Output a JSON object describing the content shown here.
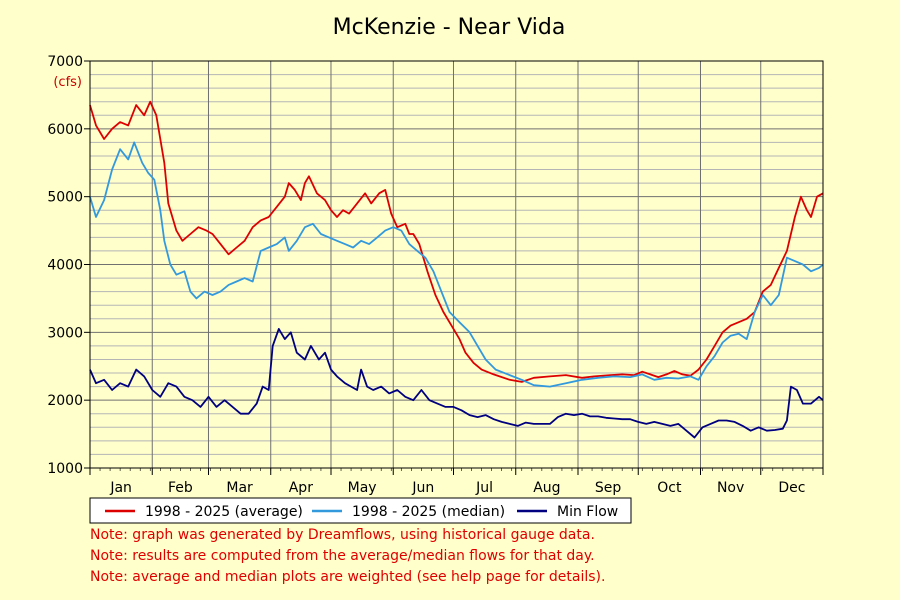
{
  "chart_data": {
    "type": "line",
    "title": "McKenzie - Near Vida",
    "ylabel": "(cfs)",
    "xlabel": "",
    "ylim": [
      1000,
      7000
    ],
    "yticks": [
      1000,
      2000,
      3000,
      4000,
      5000,
      6000,
      7000
    ],
    "month_labels": [
      "Jan",
      "Feb",
      "Mar",
      "Apr",
      "May",
      "Jun",
      "Jul",
      "Aug",
      "Sep",
      "Oct",
      "Nov",
      "Dec"
    ],
    "x_unit": "day_of_year",
    "xlim": [
      1,
      366
    ],
    "grid": true,
    "legend_position": "bottom",
    "series": [
      {
        "name": "1998 - 2025 (average)",
        "color": "#dd0000",
        "points": [
          [
            1,
            6350
          ],
          [
            4,
            6050
          ],
          [
            8,
            5850
          ],
          [
            12,
            6000
          ],
          [
            16,
            6100
          ],
          [
            20,
            6050
          ],
          [
            24,
            6350
          ],
          [
            28,
            6200
          ],
          [
            31,
            6400
          ],
          [
            34,
            6200
          ],
          [
            38,
            5500
          ],
          [
            40,
            4900
          ],
          [
            44,
            4500
          ],
          [
            47,
            4350
          ],
          [
            51,
            4450
          ],
          [
            55,
            4550
          ],
          [
            59,
            4500
          ],
          [
            62,
            4450
          ],
          [
            66,
            4300
          ],
          [
            70,
            4150
          ],
          [
            74,
            4250
          ],
          [
            78,
            4350
          ],
          [
            82,
            4550
          ],
          [
            86,
            4650
          ],
          [
            90,
            4700
          ],
          [
            94,
            4850
          ],
          [
            98,
            5000
          ],
          [
            100,
            5200
          ],
          [
            103,
            5100
          ],
          [
            106,
            4950
          ],
          [
            108,
            5200
          ],
          [
            110,
            5300
          ],
          [
            114,
            5050
          ],
          [
            118,
            4950
          ],
          [
            121,
            4800
          ],
          [
            124,
            4700
          ],
          [
            127,
            4800
          ],
          [
            130,
            4750
          ],
          [
            134,
            4900
          ],
          [
            138,
            5050
          ],
          [
            141,
            4900
          ],
          [
            145,
            5050
          ],
          [
            148,
            5100
          ],
          [
            151,
            4750
          ],
          [
            154,
            4550
          ],
          [
            158,
            4600
          ],
          [
            160,
            4450
          ],
          [
            162,
            4450
          ],
          [
            165,
            4300
          ],
          [
            169,
            3900
          ],
          [
            173,
            3550
          ],
          [
            177,
            3300
          ],
          [
            181,
            3100
          ],
          [
            185,
            2900
          ],
          [
            188,
            2700
          ],
          [
            192,
            2550
          ],
          [
            196,
            2450
          ],
          [
            202,
            2380
          ],
          [
            210,
            2300
          ],
          [
            216,
            2270
          ],
          [
            222,
            2330
          ],
          [
            230,
            2350
          ],
          [
            238,
            2370
          ],
          [
            246,
            2330
          ],
          [
            252,
            2350
          ],
          [
            260,
            2370
          ],
          [
            266,
            2380
          ],
          [
            272,
            2370
          ],
          [
            276,
            2420
          ],
          [
            280,
            2380
          ],
          [
            284,
            2340
          ],
          [
            288,
            2380
          ],
          [
            292,
            2430
          ],
          [
            296,
            2380
          ],
          [
            300,
            2360
          ],
          [
            304,
            2450
          ],
          [
            308,
            2600
          ],
          [
            312,
            2800
          ],
          [
            316,
            3000
          ],
          [
            320,
            3100
          ],
          [
            324,
            3150
          ],
          [
            328,
            3200
          ],
          [
            332,
            3300
          ],
          [
            336,
            3600
          ],
          [
            340,
            3700
          ],
          [
            344,
            3950
          ],
          [
            348,
            4200
          ],
          [
            352,
            4700
          ],
          [
            355,
            5000
          ],
          [
            358,
            4800
          ],
          [
            360,
            4700
          ],
          [
            363,
            5000
          ],
          [
            366,
            5050
          ]
        ]
      },
      {
        "name": "1998 - 2025 (median)",
        "color": "#3399dd",
        "points": [
          [
            1,
            5000
          ],
          [
            4,
            4700
          ],
          [
            8,
            4950
          ],
          [
            12,
            5400
          ],
          [
            16,
            5700
          ],
          [
            20,
            5550
          ],
          [
            23,
            5800
          ],
          [
            27,
            5500
          ],
          [
            30,
            5350
          ],
          [
            33,
            5250
          ],
          [
            36,
            4800
          ],
          [
            38,
            4350
          ],
          [
            41,
            4000
          ],
          [
            44,
            3850
          ],
          [
            48,
            3900
          ],
          [
            51,
            3600
          ],
          [
            54,
            3500
          ],
          [
            58,
            3600
          ],
          [
            62,
            3550
          ],
          [
            66,
            3600
          ],
          [
            70,
            3700
          ],
          [
            74,
            3750
          ],
          [
            78,
            3800
          ],
          [
            82,
            3750
          ],
          [
            86,
            4200
          ],
          [
            90,
            4250
          ],
          [
            94,
            4300
          ],
          [
            98,
            4400
          ],
          [
            100,
            4200
          ],
          [
            104,
            4350
          ],
          [
            108,
            4550
          ],
          [
            112,
            4600
          ],
          [
            116,
            4450
          ],
          [
            120,
            4400
          ],
          [
            124,
            4350
          ],
          [
            128,
            4300
          ],
          [
            132,
            4250
          ],
          [
            136,
            4350
          ],
          [
            140,
            4300
          ],
          [
            144,
            4400
          ],
          [
            148,
            4500
          ],
          [
            152,
            4550
          ],
          [
            156,
            4500
          ],
          [
            160,
            4300
          ],
          [
            164,
            4200
          ],
          [
            168,
            4100
          ],
          [
            172,
            3900
          ],
          [
            176,
            3600
          ],
          [
            180,
            3300
          ],
          [
            185,
            3150
          ],
          [
            190,
            3000
          ],
          [
            194,
            2800
          ],
          [
            198,
            2600
          ],
          [
            203,
            2450
          ],
          [
            210,
            2370
          ],
          [
            216,
            2300
          ],
          [
            222,
            2220
          ],
          [
            230,
            2200
          ],
          [
            238,
            2250
          ],
          [
            246,
            2300
          ],
          [
            254,
            2330
          ],
          [
            262,
            2350
          ],
          [
            270,
            2340
          ],
          [
            276,
            2380
          ],
          [
            282,
            2300
          ],
          [
            288,
            2330
          ],
          [
            294,
            2320
          ],
          [
            300,
            2350
          ],
          [
            304,
            2300
          ],
          [
            308,
            2500
          ],
          [
            312,
            2650
          ],
          [
            316,
            2850
          ],
          [
            320,
            2950
          ],
          [
            324,
            2980
          ],
          [
            328,
            2900
          ],
          [
            332,
            3300
          ],
          [
            336,
            3550
          ],
          [
            340,
            3400
          ],
          [
            344,
            3550
          ],
          [
            348,
            4100
          ],
          [
            352,
            4050
          ],
          [
            356,
            4000
          ],
          [
            360,
            3900
          ],
          [
            364,
            3950
          ],
          [
            366,
            4000
          ]
        ]
      },
      {
        "name": "Min Flow",
        "color": "#000080",
        "points": [
          [
            1,
            2450
          ],
          [
            4,
            2250
          ],
          [
            8,
            2300
          ],
          [
            12,
            2150
          ],
          [
            16,
            2250
          ],
          [
            20,
            2200
          ],
          [
            24,
            2450
          ],
          [
            28,
            2350
          ],
          [
            32,
            2150
          ],
          [
            36,
            2050
          ],
          [
            40,
            2250
          ],
          [
            44,
            2200
          ],
          [
            48,
            2050
          ],
          [
            52,
            2000
          ],
          [
            56,
            1900
          ],
          [
            60,
            2050
          ],
          [
            64,
            1900
          ],
          [
            68,
            2000
          ],
          [
            72,
            1900
          ],
          [
            76,
            1800
          ],
          [
            80,
            1800
          ],
          [
            84,
            1950
          ],
          [
            87,
            2200
          ],
          [
            90,
            2150
          ],
          [
            92,
            2800
          ],
          [
            95,
            3050
          ],
          [
            98,
            2900
          ],
          [
            101,
            3000
          ],
          [
            104,
            2700
          ],
          [
            108,
            2600
          ],
          [
            111,
            2800
          ],
          [
            115,
            2600
          ],
          [
            118,
            2700
          ],
          [
            121,
            2450
          ],
          [
            124,
            2350
          ],
          [
            128,
            2250
          ],
          [
            131,
            2200
          ],
          [
            134,
            2150
          ],
          [
            136,
            2450
          ],
          [
            139,
            2200
          ],
          [
            142,
            2150
          ],
          [
            146,
            2200
          ],
          [
            150,
            2100
          ],
          [
            154,
            2150
          ],
          [
            158,
            2050
          ],
          [
            162,
            2000
          ],
          [
            166,
            2150
          ],
          [
            170,
            2000
          ],
          [
            174,
            1950
          ],
          [
            178,
            1900
          ],
          [
            182,
            1900
          ],
          [
            186,
            1850
          ],
          [
            190,
            1780
          ],
          [
            194,
            1750
          ],
          [
            198,
            1780
          ],
          [
            202,
            1720
          ],
          [
            206,
            1680
          ],
          [
            210,
            1650
          ],
          [
            214,
            1620
          ],
          [
            218,
            1670
          ],
          [
            222,
            1650
          ],
          [
            226,
            1650
          ],
          [
            230,
            1650
          ],
          [
            234,
            1750
          ],
          [
            238,
            1800
          ],
          [
            242,
            1780
          ],
          [
            246,
            1800
          ],
          [
            250,
            1760
          ],
          [
            254,
            1760
          ],
          [
            258,
            1740
          ],
          [
            262,
            1730
          ],
          [
            266,
            1720
          ],
          [
            270,
            1720
          ],
          [
            274,
            1680
          ],
          [
            278,
            1650
          ],
          [
            282,
            1680
          ],
          [
            286,
            1650
          ],
          [
            290,
            1620
          ],
          [
            294,
            1650
          ],
          [
            298,
            1550
          ],
          [
            302,
            1450
          ],
          [
            306,
            1600
          ],
          [
            310,
            1650
          ],
          [
            314,
            1700
          ],
          [
            318,
            1700
          ],
          [
            322,
            1680
          ],
          [
            326,
            1620
          ],
          [
            330,
            1550
          ],
          [
            334,
            1600
          ],
          [
            338,
            1550
          ],
          [
            342,
            1560
          ],
          [
            346,
            1580
          ],
          [
            348,
            1700
          ],
          [
            350,
            2200
          ],
          [
            353,
            2150
          ],
          [
            356,
            1950
          ],
          [
            360,
            1950
          ],
          [
            364,
            2050
          ],
          [
            366,
            2000
          ]
        ]
      }
    ]
  },
  "notes": [
    "Note: graph was generated by Dreamflows, using historical gauge data.",
    "Note: results are computed from the average/median flows for that day.",
    "Note: average and median plots are weighted (see help page for details)."
  ]
}
